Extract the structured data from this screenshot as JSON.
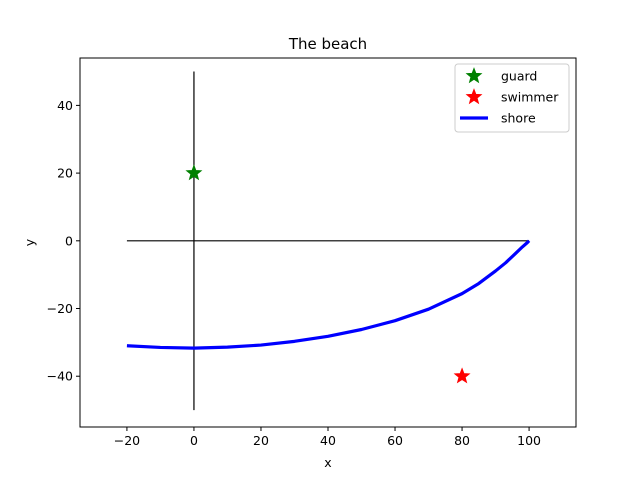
{
  "chart_data": {
    "type": "line",
    "title": "The beach",
    "xlabel": "x",
    "ylabel": "y",
    "xlim": [
      -34,
      114
    ],
    "ylim": [
      -55,
      54
    ],
    "xticks": [
      -20,
      0,
      20,
      40,
      60,
      80,
      100
    ],
    "yticks": [
      -40,
      -20,
      0,
      20,
      40
    ],
    "xtick_labels": [
      "−20",
      "0",
      "20",
      "40",
      "60",
      "80",
      "100"
    ],
    "ytick_labels": [
      "−40",
      "−20",
      "0",
      "20",
      "40"
    ],
    "grid": false,
    "legend": "top-right",
    "reference_lines": [
      {
        "x": [
          0,
          0
        ],
        "y": [
          -50,
          50
        ],
        "color": "#000000"
      },
      {
        "x": [
          -20,
          100
        ],
        "y": [
          0,
          0
        ],
        "color": "#000000"
      }
    ],
    "series": [
      {
        "name": "guard",
        "kind": "marker",
        "marker": "star",
        "color": "#008000",
        "x": [
          0
        ],
        "y": [
          20
        ]
      },
      {
        "name": "swimmer",
        "kind": "marker",
        "marker": "star",
        "color": "#ff0000",
        "x": [
          80
        ],
        "y": [
          -40
        ]
      },
      {
        "name": "shore",
        "kind": "line",
        "color": "#0000ff",
        "x": [
          -20,
          -10,
          0,
          10,
          20,
          30,
          40,
          50,
          60,
          70,
          80,
          85,
          90,
          93,
          96,
          98,
          99.5,
          100
        ],
        "y": [
          -31,
          -31.5,
          -31.7,
          -31.4,
          -30.8,
          -29.7,
          -28.2,
          -26.2,
          -23.6,
          -20.2,
          -15.6,
          -12.6,
          -8.9,
          -6.5,
          -3.7,
          -1.8,
          -0.5,
          0
        ]
      }
    ]
  }
}
